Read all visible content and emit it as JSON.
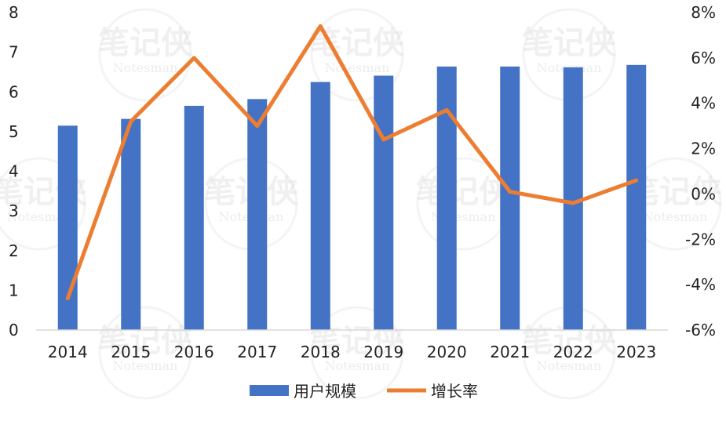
{
  "watermark": {
    "text": "笔记侠",
    "sub": "Notesman"
  },
  "chart_data": {
    "type": "bar",
    "categories": [
      "2014",
      "2015",
      "2016",
      "2017",
      "2018",
      "2019",
      "2020",
      "2021",
      "2022",
      "2023"
    ],
    "series": [
      {
        "name": "用户规模",
        "kind": "bar",
        "axis": "left",
        "color": "#4472C4",
        "values": [
          5.15,
          5.32,
          5.65,
          5.82,
          6.25,
          6.41,
          6.64,
          6.64,
          6.62,
          6.68
        ]
      },
      {
        "name": "增长率",
        "kind": "line",
        "axis": "right",
        "color": "#ED7D31",
        "values": [
          -4.6,
          3.2,
          6.0,
          3.0,
          7.4,
          2.4,
          3.7,
          0.1,
          -0.4,
          0.6
        ]
      }
    ],
    "y_left": {
      "range": [
        0,
        8
      ],
      "ticks": [
        "0",
        "1",
        "2",
        "3",
        "4",
        "5",
        "6",
        "7",
        "8"
      ]
    },
    "y_right": {
      "range": [
        -6,
        8
      ],
      "ticks": [
        "-6%",
        "-4%",
        "-2%",
        "0%",
        "2%",
        "4%",
        "6%",
        "8%"
      ]
    },
    "legend": {
      "position": "bottom"
    },
    "grid": false
  }
}
